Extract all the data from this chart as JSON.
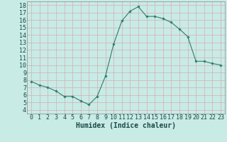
{
  "x": [
    0,
    1,
    2,
    3,
    4,
    5,
    6,
    7,
    8,
    9,
    10,
    11,
    12,
    13,
    14,
    15,
    16,
    17,
    18,
    19,
    20,
    21,
    22,
    23
  ],
  "y": [
    7.8,
    7.3,
    7.0,
    6.5,
    5.8,
    5.8,
    5.2,
    4.7,
    5.8,
    8.5,
    12.8,
    15.9,
    17.2,
    17.8,
    16.5,
    16.5,
    16.2,
    15.7,
    14.8,
    13.8,
    10.5,
    10.5,
    10.2,
    10.0
  ],
  "line_color": "#2d7d6e",
  "marker": "D",
  "marker_size": 1.8,
  "xlabel": "Humidex (Indice chaleur)",
  "xlim": [
    -0.5,
    23.5
  ],
  "ylim": [
    3.5,
    18.5
  ],
  "yticks": [
    4,
    5,
    6,
    7,
    8,
    9,
    10,
    11,
    12,
    13,
    14,
    15,
    16,
    17,
    18
  ],
  "xticks": [
    0,
    1,
    2,
    3,
    4,
    5,
    6,
    7,
    8,
    9,
    10,
    11,
    12,
    13,
    14,
    15,
    16,
    17,
    18,
    19,
    20,
    21,
    22,
    23
  ],
  "grid_major_color": "#d4aeae",
  "grid_minor_color": "#b8ddd8",
  "background_color": "#c8ebe6",
  "font_size": 6,
  "xlabel_fontsize": 7
}
